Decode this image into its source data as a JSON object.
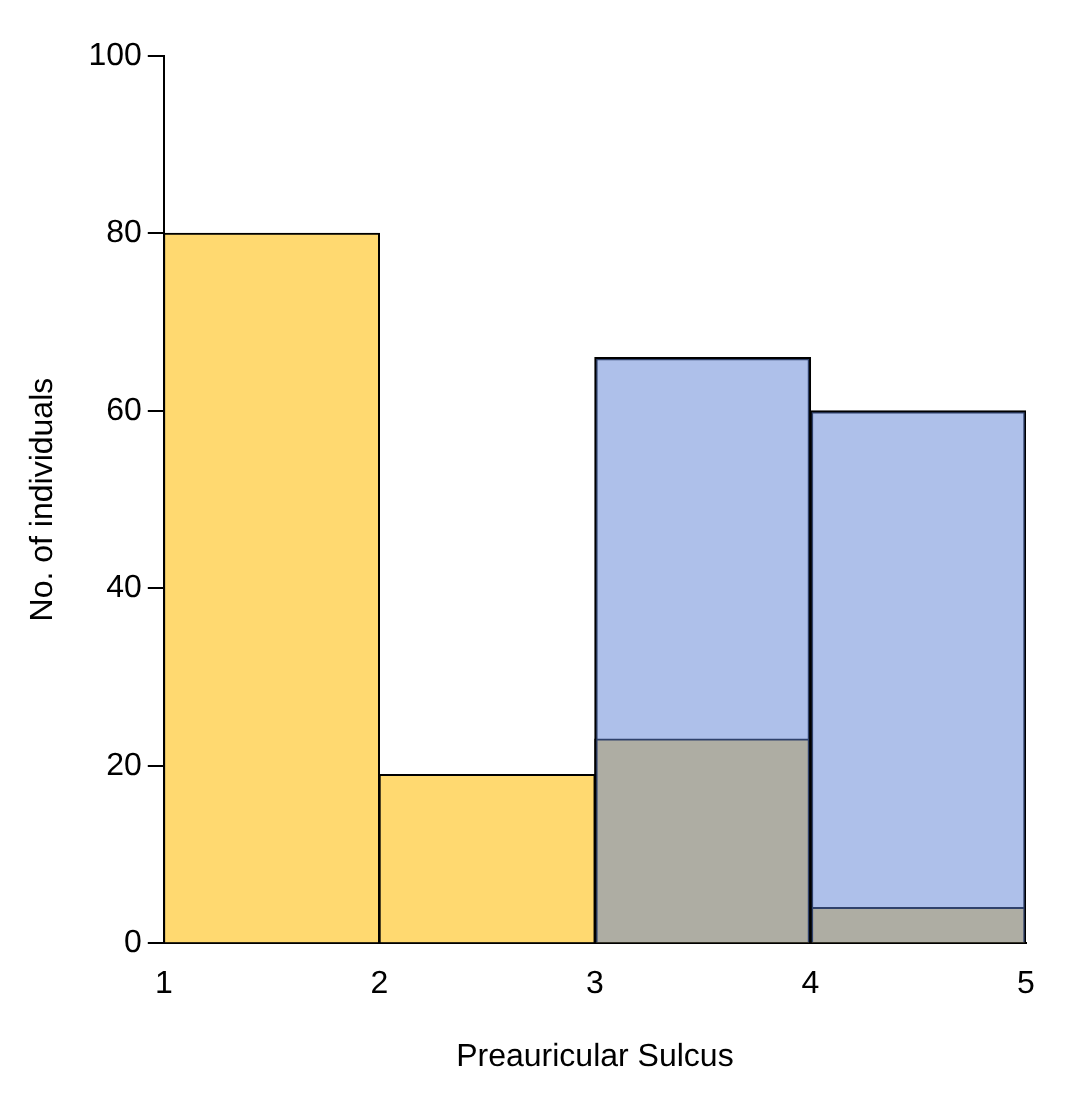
{
  "chart_data": {
    "type": "histogram",
    "xlabel": "Preauricular Sulcus",
    "ylabel": "No. of individuals",
    "bins": [
      1,
      2,
      3,
      4,
      5
    ],
    "series": [
      {
        "color": "#ffd970",
        "values": [
          80,
          19,
          23,
          4
        ]
      },
      {
        "color": "#aec0ea",
        "values": [
          0,
          0,
          66,
          60
        ]
      }
    ],
    "xlim": [
      1,
      5
    ],
    "xticks": [
      1,
      2,
      3,
      4,
      5
    ],
    "ylim": [
      0,
      100
    ],
    "yticks": [
      0,
      20,
      40,
      60,
      80,
      100
    ],
    "grid": false,
    "legend": false
  }
}
